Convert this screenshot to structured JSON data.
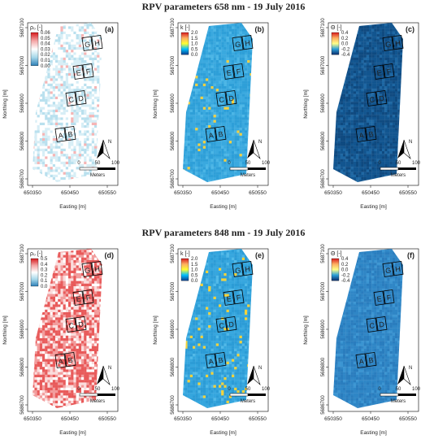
{
  "titles": [
    "RPV parameters 658 nm - 19 July 2016",
    "RPV parameters 848 nm - 19 July 2016"
  ],
  "northing_label": "Northing [m]",
  "easting_label": "Easting [m]",
  "northing_ticks": [
    "5686700",
    "5686800",
    "5686900",
    "5687000",
    "5687100"
  ],
  "easting_ticks": [
    "650350",
    "650450",
    "650550"
  ],
  "scalebar": {
    "ticks": [
      "0",
      "50",
      "100"
    ],
    "unit": "Meters"
  },
  "north_arrow_label": "N",
  "plot_labels": [
    "A",
    "B",
    "C",
    "D",
    "E",
    "F",
    "G",
    "H"
  ],
  "panels": [
    {
      "letter": "(a)",
      "legend_title": "ρ₀ [-]",
      "ticks": [
        "0.06",
        "0.05",
        "0.04",
        "0.03",
        "0.02",
        "0.01",
        "0.00"
      ],
      "pattern": "white-cyan"
    },
    {
      "letter": "(b)",
      "legend_title": "k [-]",
      "ticks": [
        "2.0",
        "1.5",
        "1.0",
        "0.5",
        "0.0"
      ],
      "pattern": "sky"
    },
    {
      "letter": "(c)",
      "legend_title": "Θ [-]",
      "ticks": [
        "0.4",
        "0.2",
        "0.0",
        "-0.2",
        "-0.4"
      ],
      "pattern": "navy"
    },
    {
      "letter": "(d)",
      "legend_title": "ρ₀ [-]",
      "ticks": [
        "0.5",
        "0.4",
        "0.3",
        "0.2",
        "0.1",
        "0.0"
      ],
      "pattern": "red-white"
    },
    {
      "letter": "(e)",
      "legend_title": "k [-]",
      "ticks": [
        "2.0",
        "1.5",
        "1.0",
        "0.5",
        "0.0"
      ],
      "pattern": "sky-speckle"
    },
    {
      "letter": "(f)",
      "legend_title": "Θ [-]",
      "ticks": [
        "0.4",
        "0.2",
        "0.0",
        "-0.2",
        "-0.4"
      ],
      "pattern": "mid-blue"
    }
  ],
  "colors": {
    "colorbar_stops": [
      "#d7191c",
      "#f4a6a6",
      "#ffffff",
      "#a6d8ea",
      "#2c7fb8"
    ],
    "k_colorbar_stops": [
      "#d7191c",
      "#fdae61",
      "#ffff33",
      "#00bfff",
      "#0b3c8c"
    ],
    "theta_colorbar_stops": [
      "#d7191c",
      "#fdae61",
      "#ffff88",
      "#2b9fd8",
      "#0b2c6b"
    ]
  }
}
